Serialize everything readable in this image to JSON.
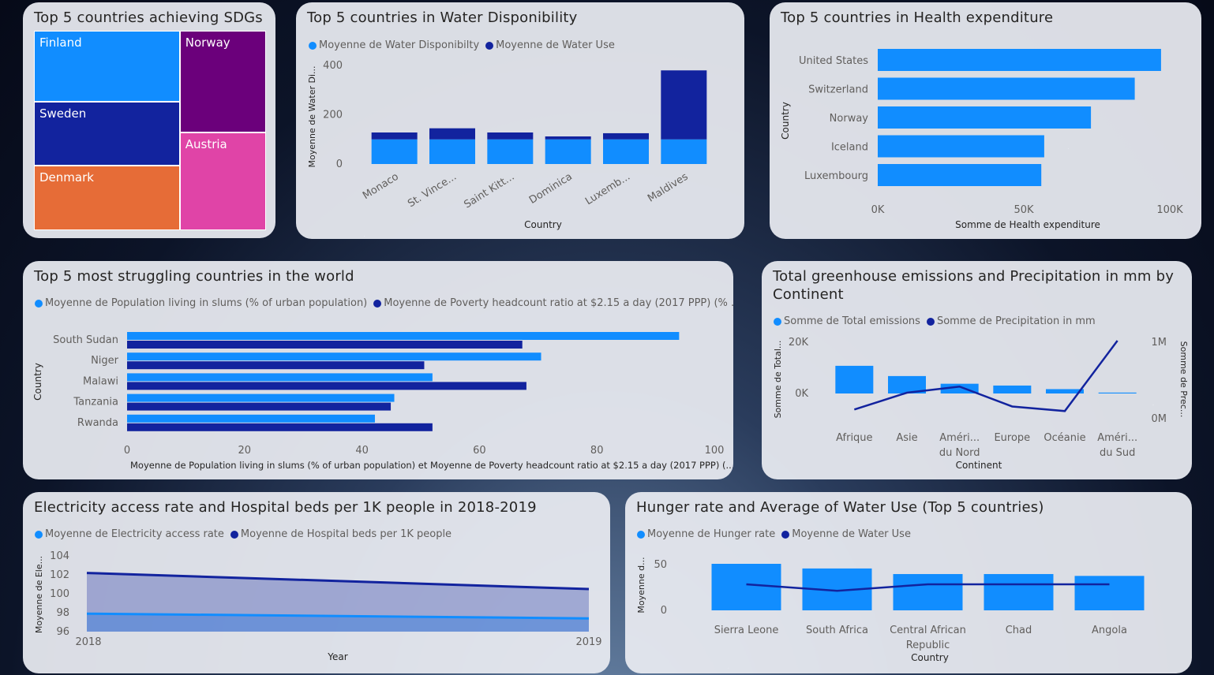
{
  "colors": {
    "light_blue": "#118DFF",
    "dark_blue": "#12239E",
    "treemap": [
      "#118DFF",
      "#12239E",
      "#E66C37",
      "#6B007B",
      "#E044A7"
    ]
  },
  "cards": {
    "sdg": {
      "title": "Top 5 countries achieving SDGs",
      "chart_data": {
        "type": "treemap",
        "items": [
          {
            "label": "Finland",
            "value": 33
          },
          {
            "label": "Sweden",
            "value": 30
          },
          {
            "label": "Denmark",
            "value": 30
          },
          {
            "label": "Norway",
            "value": 28
          },
          {
            "label": "Austria",
            "value": 27
          }
        ]
      }
    },
    "water": {
      "title": "Top 5 countries in Water Disponibility",
      "legend": [
        "Moyenne de Water Disponibilty",
        "Moyenne de Water Use"
      ],
      "chart_data": {
        "type": "bar",
        "stacked": true,
        "categories": [
          "Monaco",
          "St. Vince...",
          "Saint Kitt...",
          "Dominica",
          "Luxemb...",
          "Maldives"
        ],
        "series": [
          {
            "name": "Moyenne de Water Disponibilty",
            "values": [
              100,
              100,
              100,
              100,
              100,
              100
            ]
          },
          {
            "name": "Moyenne de Water Use",
            "values": [
              28,
              45,
              28,
              12,
              25,
              280
            ]
          }
        ],
        "xlabel": "Country",
        "ylabel": "Moyenne de Water Di...",
        "yticks": [
          "0",
          "200",
          "400"
        ],
        "ylim": [
          0,
          400
        ]
      }
    },
    "health": {
      "title": "Top 5 countries in Health expenditure",
      "chart_data": {
        "type": "bar",
        "orientation": "horizontal",
        "categories": [
          "United States",
          "Switzerland",
          "Norway",
          "Iceland",
          "Luxembourg"
        ],
        "values": [
          97000,
          88000,
          73000,
          57000,
          56000
        ],
        "xlabel": "Somme de Health expenditure",
        "ylabel": "Country",
        "xticks": [
          "0K",
          "50K",
          "100K"
        ],
        "xlim": [
          0,
          100000
        ]
      }
    },
    "struggle": {
      "title": "Top 5 most struggling countries in the world",
      "legend": [
        "Moyenne de Population living in slums (% of urban population)",
        "Moyenne de Poverty headcount ratio at $2.15 a day (2017 PPP) (% ..."
      ],
      "chart_data": {
        "type": "bar",
        "orientation": "horizontal",
        "categories": [
          "South Sudan",
          "Niger",
          "Malawi",
          "Tanzania",
          "Rwanda"
        ],
        "series": [
          {
            "name": "Moyenne de Population living in slums (% of urban population)",
            "values": [
              94,
              70.5,
              52,
              45.5,
              42.2
            ]
          },
          {
            "name": "Moyenne de Poverty headcount ratio at $2.15 a day (2017 PPP) (% ...",
            "values": [
              67.3,
              50.6,
              68,
              44.9,
              52
            ]
          }
        ],
        "xlabel": "Moyenne de Population living in slums (% of urban population) et Moyenne de Poverty headcount ratio at $2.15 a day (2017 PPP) (...",
        "ylabel": "Country",
        "xticks": [
          "0",
          "20",
          "40",
          "60",
          "80",
          "100"
        ],
        "xlim": [
          0,
          100
        ]
      }
    },
    "greenhouse": {
      "title": "Total greenhouse emissions and Precipitation in mm by Continent",
      "legend": [
        "Somme de Total emissions",
        "Somme de Precipitation in mm"
      ],
      "chart_data": {
        "type": "bar+line",
        "categories": [
          "Afrique",
          "Asie",
          "Améri... du Nord",
          "Europe",
          "Océanie",
          "Améri... du Sud"
        ],
        "category_lines": [
          [
            "Afrique"
          ],
          [
            "Asie"
          ],
          [
            "Améri...",
            "du Nord"
          ],
          [
            "Europe"
          ],
          [
            "Océanie"
          ],
          [
            "Améri...",
            "du Sud"
          ]
        ],
        "series": [
          {
            "name": "Somme de Total emissions",
            "type": "bar",
            "values": [
              10800,
              6800,
              3800,
              3100,
              1700,
              350
            ]
          },
          {
            "name": "Somme de Precipitation in mm",
            "type": "line",
            "axis": "right",
            "values": [
              120000,
              340000,
              420000,
              160000,
              100000,
              1020000
            ]
          }
        ],
        "xlabel": "Continent",
        "ylabel_left": "Somme de Total...",
        "ylabel_right": "Somme de Prec...",
        "yticks_left": [
          "0K",
          "20K"
        ],
        "yticks_right": [
          "0M",
          "1M"
        ]
      }
    },
    "electricity": {
      "title": "Electricity access rate and Hospital beds per 1K people in 2018-2019",
      "legend": [
        "Moyenne de Electricity access rate",
        "Moyenne de Hospital beds per 1K people"
      ],
      "chart_data": {
        "type": "area",
        "x": [
          "2018",
          "2019"
        ],
        "series": [
          {
            "name": "Moyenne de Electricity access rate",
            "values": [
              97.9,
              97.4
            ]
          },
          {
            "name": "Moyenne de Hospital beds per 1K people",
            "values": [
              102.2,
              100.5
            ]
          }
        ],
        "xlabel": "Year",
        "ylabel": "Moyenne de Ele...",
        "yticks": [
          "96",
          "98",
          "100",
          "102",
          "104"
        ],
        "ylim": [
          96,
          104
        ]
      }
    },
    "hunger": {
      "title": "Hunger rate and Average of Water Use (Top 5 countries)",
      "legend": [
        "Moyenne de Hunger rate",
        "Moyenne de Water Use"
      ],
      "chart_data": {
        "type": "bar+line",
        "categories": [
          "Sierra Leone",
          "South Africa",
          "Central African Republic",
          "Chad",
          "Angola"
        ],
        "category_lines": [
          [
            "Sierra Leone"
          ],
          [
            "South Africa"
          ],
          [
            "Central African",
            "Republic"
          ],
          [
            "Chad"
          ],
          [
            "Angola"
          ]
        ],
        "series": [
          {
            "name": "Moyenne de Hunger rate",
            "type": "bar",
            "values": [
              50,
              45,
              39,
              39,
              37
            ]
          },
          {
            "name": "Moyenne de Water Use",
            "type": "line",
            "values": [
              28,
              21,
              28,
              28,
              28
            ]
          }
        ],
        "xlabel": "Country",
        "ylabel": "Moyenne d...",
        "yticks": [
          "0",
          "50"
        ],
        "ylim": [
          0,
          60
        ]
      }
    }
  }
}
